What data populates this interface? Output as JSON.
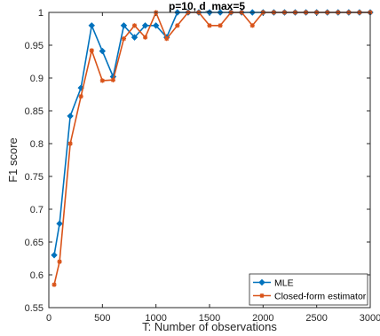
{
  "chart_data": {
    "type": "line",
    "title": "p=10, d_max=5",
    "xlabel": "T: Number of observations",
    "ylabel": "F1 score",
    "xlim": [
      0,
      3000
    ],
    "ylim": [
      0.55,
      1
    ],
    "xticks": [
      0,
      500,
      1000,
      1500,
      2000,
      2500,
      3000
    ],
    "xtick_labels": [
      "0",
      "500",
      "1000",
      "1500",
      "2000",
      "2500",
      "3000"
    ],
    "yticks": [
      0.55,
      0.6,
      0.65,
      0.7,
      0.75,
      0.8,
      0.85,
      0.9,
      0.95,
      1
    ],
    "ytick_labels": [
      "0.55",
      "0.6",
      "0.65",
      "0.7",
      "0.75",
      "0.8",
      "0.85",
      "0.9",
      "0.95",
      "1"
    ],
    "grid": false,
    "legend_position": "bottom-right",
    "series": [
      {
        "name": "MLE",
        "color": "#0072BD",
        "marker": "diamond",
        "x": [
          50,
          100,
          200,
          300,
          400,
          500,
          600,
          700,
          800,
          900,
          1000,
          1100,
          1200,
          1300,
          1400,
          1500,
          1600,
          1700,
          1800,
          1900,
          2000,
          2100,
          2200,
          2300,
          2400,
          2500,
          2600,
          2700,
          2800,
          2900,
          3000
        ],
        "values": [
          0.63,
          0.678,
          0.842,
          0.885,
          0.98,
          0.941,
          0.902,
          0.98,
          0.962,
          0.98,
          0.98,
          0.962,
          1,
          1,
          1,
          1,
          1,
          1,
          1,
          1,
          1,
          1,
          1,
          1,
          1,
          1,
          1,
          1,
          1,
          1,
          1
        ]
      },
      {
        "name": "Closed-form estimator",
        "color": "#D95319",
        "marker": "asterisk",
        "x": [
          50,
          100,
          200,
          300,
          400,
          500,
          600,
          700,
          800,
          900,
          1000,
          1100,
          1200,
          1300,
          1400,
          1500,
          1600,
          1700,
          1800,
          1900,
          2000,
          2100,
          2200,
          2300,
          2400,
          2500,
          2600,
          2700,
          2800,
          2900,
          3000
        ],
        "values": [
          0.585,
          0.62,
          0.8,
          0.872,
          0.942,
          0.896,
          0.897,
          0.96,
          0.98,
          0.962,
          1,
          0.96,
          0.98,
          1,
          1,
          0.98,
          0.98,
          1,
          1,
          0.98,
          1,
          1,
          1,
          1,
          1,
          1,
          1,
          1,
          1,
          1,
          1
        ]
      }
    ]
  }
}
